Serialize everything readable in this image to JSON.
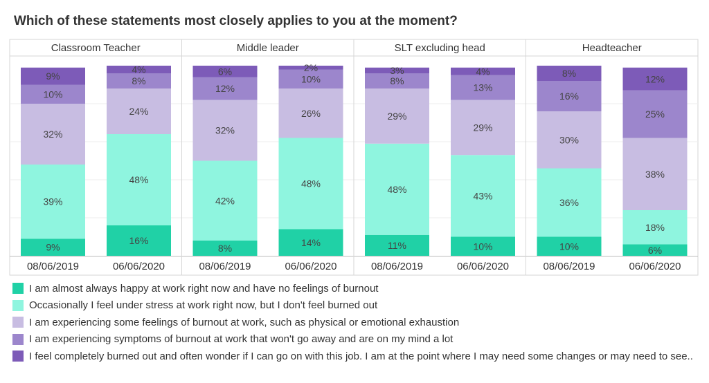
{
  "title": "Which of these statements most closely applies to you at the moment?",
  "chart_data": {
    "type": "bar",
    "stacked": true,
    "percent": true,
    "title": "Which of these statements most closely applies to you at the moment?",
    "panels": [
      "Classroom Teacher",
      "Middle leader",
      "SLT excluding head",
      "Headteacher"
    ],
    "categories": [
      "08/06/2019",
      "06/06/2020"
    ],
    "ylim": [
      0,
      100
    ],
    "grid": true,
    "legend_position": "bottom",
    "series": [
      {
        "name": "I am almost always happy at work right now and have no feelings of burnout",
        "color": "#20d1a6",
        "values": [
          [
            9,
            16
          ],
          [
            8,
            14
          ],
          [
            11,
            10
          ],
          [
            10,
            6
          ]
        ]
      },
      {
        "name": "Occasionally I feel under stress at work right now, but I don't feel burned out",
        "color": "#8ff5df",
        "values": [
          [
            39,
            48
          ],
          [
            42,
            48
          ],
          [
            48,
            43
          ],
          [
            36,
            18
          ]
        ]
      },
      {
        "name": "I am experiencing some feelings of burnout at work, such as physical or emotional exhaustion",
        "color": "#c8bde2",
        "values": [
          [
            32,
            24
          ],
          [
            32,
            26
          ],
          [
            29,
            29
          ],
          [
            30,
            38
          ]
        ]
      },
      {
        "name": "I am experiencing symptoms of burnout at work that won't go away and are on my mind a lot",
        "color": "#9c86cc",
        "values": [
          [
            10,
            8
          ],
          [
            12,
            10
          ],
          [
            8,
            13
          ],
          [
            16,
            25
          ]
        ]
      },
      {
        "name": "I feel completely burned out and often wonder if I can go on with this job. I am at the point where I may need some changes or may need to see..",
        "color": "#7d5bb8",
        "values": [
          [
            9,
            4
          ],
          [
            6,
            2
          ],
          [
            3,
            4
          ],
          [
            8,
            12
          ]
        ]
      }
    ]
  }
}
